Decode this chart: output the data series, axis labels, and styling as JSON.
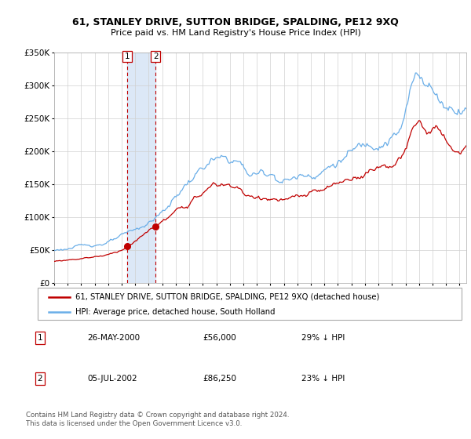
{
  "title": "61, STANLEY DRIVE, SUTTON BRIDGE, SPALDING, PE12 9XQ",
  "subtitle": "Price paid vs. HM Land Registry's House Price Index (HPI)",
  "legend_line1": "61, STANLEY DRIVE, SUTTON BRIDGE, SPALDING, PE12 9XQ (detached house)",
  "legend_line2": "HPI: Average price, detached house, South Holland",
  "transaction1_date": "26-MAY-2000",
  "transaction1_price": "£56,000",
  "transaction1_hpi": "29% ↓ HPI",
  "transaction2_date": "05-JUL-2002",
  "transaction2_price": "£86,250",
  "transaction2_hpi": "23% ↓ HPI",
  "footer": "Contains HM Land Registry data © Crown copyright and database right 2024.\nThis data is licensed under the Open Government Licence v3.0.",
  "hpi_color": "#6aaee8",
  "price_color": "#c00000",
  "bg_color": "#ffffff",
  "plot_bg_color": "#ffffff",
  "grid_color": "#d0d0d0",
  "ylim_min": 0,
  "ylim_max": 350000,
  "yticks": [
    0,
    50000,
    100000,
    150000,
    200000,
    250000,
    300000,
    350000
  ],
  "ytick_labels": [
    "£0",
    "£50K",
    "£100K",
    "£150K",
    "£200K",
    "£250K",
    "£300K",
    "£350K"
  ],
  "xmin_year": 1995.0,
  "xmax_year": 2025.5,
  "xticks": [
    1995,
    1996,
    1997,
    1998,
    1999,
    2000,
    2001,
    2002,
    2003,
    2004,
    2005,
    2006,
    2007,
    2008,
    2009,
    2010,
    2011,
    2012,
    2013,
    2014,
    2015,
    2016,
    2017,
    2018,
    2019,
    2020,
    2021,
    2022,
    2023,
    2024,
    2025
  ],
  "transaction1_x": 2000.4,
  "transaction1_y": 56000,
  "transaction2_x": 2002.5,
  "transaction2_y": 86250,
  "vline1_x": 2000.4,
  "vline2_x": 2002.5,
  "highlight_xmin": 2000.4,
  "highlight_xmax": 2002.5,
  "highlight_color": "#dce8f7"
}
